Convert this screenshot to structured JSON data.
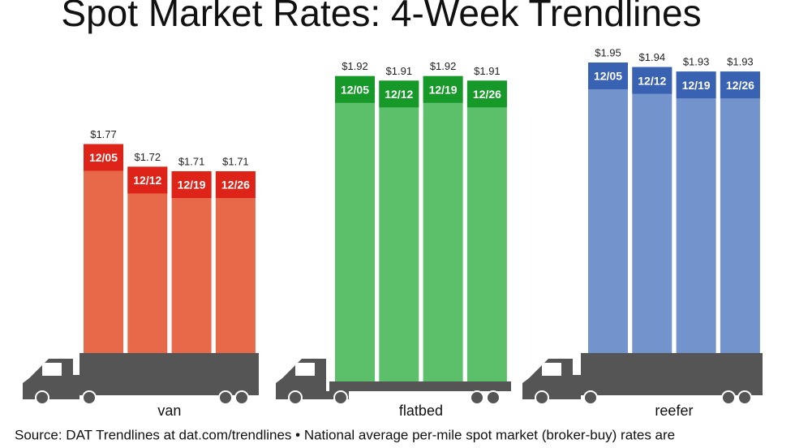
{
  "chart_data": {
    "type": "bar",
    "title": "Spot Market Rates: 4-Week Trendlines",
    "categories": [
      "12/05",
      "12/12",
      "12/19",
      "12/26"
    ],
    "series": [
      {
        "name": "van",
        "color": "#e8694a",
        "header_color": "#de2418",
        "values": [
          1.77,
          1.72,
          1.71,
          1.71
        ],
        "value_labels": [
          "$1.77",
          "$1.72",
          "$1.71",
          "$1.71"
        ]
      },
      {
        "name": "flatbed",
        "color": "#5cbf6a",
        "header_color": "#17992a",
        "values": [
          1.92,
          1.91,
          1.92,
          1.91
        ],
        "value_labels": [
          "$1.92",
          "$1.91",
          "$1.92",
          "$1.91"
        ]
      },
      {
        "name": "reefer",
        "color": "#7393cc",
        "header_color": "#3a62b3",
        "values": [
          1.95,
          1.94,
          1.93,
          1.93
        ],
        "value_labels": [
          "$1.95",
          "$1.94",
          "$1.93",
          "$1.93"
        ]
      }
    ],
    "source": "Source: DAT Trendlines at dat.com/trendlines • National average per-mile spot market (broker-buy) rates are"
  }
}
